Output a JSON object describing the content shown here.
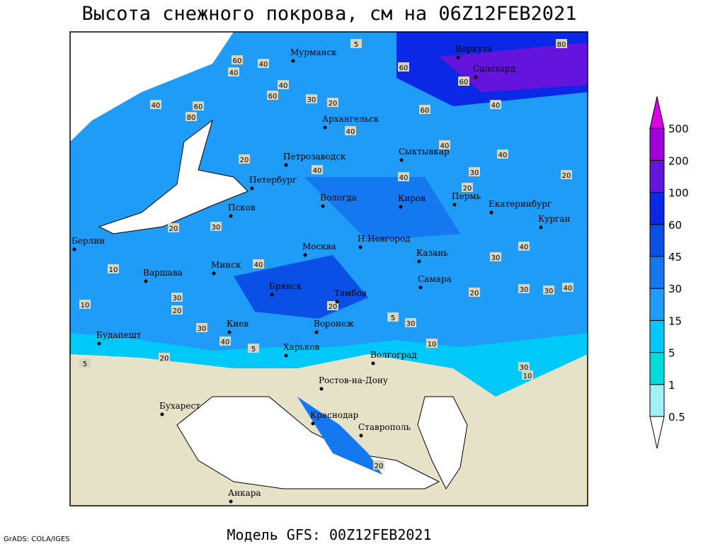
{
  "title": "Высота снежного покрова, см на 06Z12FEB2021",
  "footer": {
    "model": "Модель GFS: 00Z12FEB2021",
    "credit": "GrADS: COLA/IGES"
  },
  "legend": {
    "levels": [
      0.5,
      1,
      5,
      15,
      30,
      45,
      60,
      100,
      200,
      500
    ],
    "colors": [
      "#ffffff",
      "#a0f0f8",
      "#00dcdc",
      "#00c8f8",
      "#1e9cf8",
      "#1478f0",
      "#0a50e6",
      "#0a28e6",
      "#6414dc",
      "#a000dc",
      "#dc00e6"
    ]
  },
  "cities": [
    "Мурманск",
    "Воркута",
    "Салехард",
    "Архангельск",
    "Петрозаводск",
    "Сыктывкар",
    "Петербург",
    "Вологда",
    "Киров",
    "Пермь",
    "Екатеринбург",
    "Курган",
    "Псков",
    "Н.Новгород",
    "Казань",
    "Москва",
    "Берлин",
    "Минск",
    "Варшава",
    "Брянск",
    "Тамбов",
    "Самара",
    "Киев",
    "Воронеж",
    "Будапешт",
    "Харьков",
    "Волгоград",
    "Ростов-на-Дону",
    "Бухарест",
    "Краснодар",
    "Ставрополь",
    "Анкара"
  ],
  "contour_labels": [
    5,
    60,
    40,
    40,
    40,
    60,
    30,
    20,
    80,
    60,
    40,
    60,
    40,
    60,
    80,
    60,
    40,
    40,
    40,
    20,
    40,
    40,
    30,
    20,
    20,
    30,
    20,
    10,
    40,
    30,
    20,
    40,
    30,
    10,
    5,
    20,
    30,
    30,
    40,
    10,
    30,
    20,
    30,
    40,
    30,
    10,
    5,
    20,
    5,
    20
  ]
}
